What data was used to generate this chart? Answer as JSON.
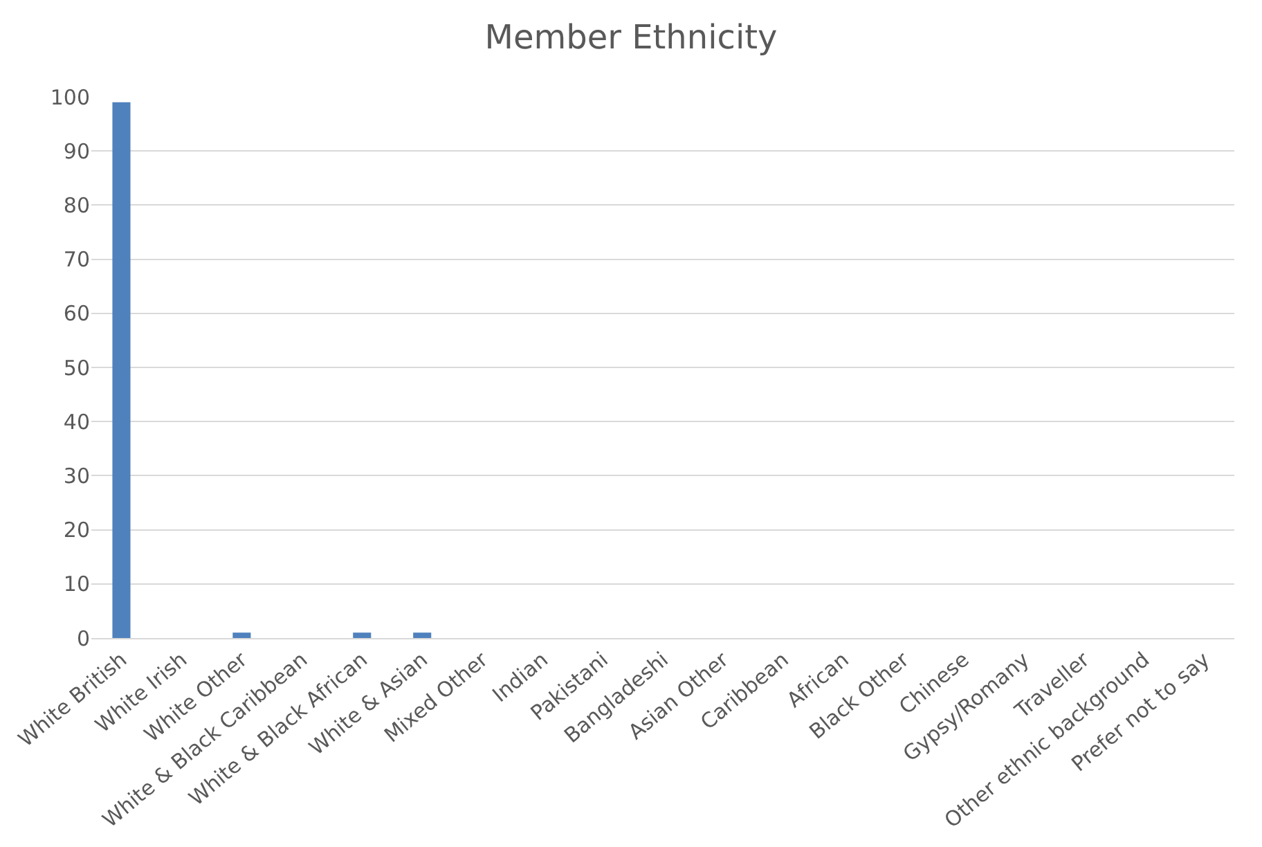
{
  "chart_data": {
    "type": "bar",
    "title": "Member Ethnicity",
    "categories": [
      "White British",
      "White Irish",
      "White Other",
      "White & Black Caribbean",
      "White & Black African",
      "White & Asian",
      "Mixed Other",
      "Indian",
      "Pakistani",
      "Bangladeshi",
      "Asian Other",
      "Caribbean",
      "African",
      "Black Other",
      "Chinese",
      "Gypsy/Romany",
      "Traveller",
      "Other ethnic background",
      "Prefer not to say"
    ],
    "values": [
      99,
      0,
      1,
      0,
      1,
      1,
      0,
      0,
      0,
      0,
      0,
      0,
      0,
      0,
      0,
      0,
      0,
      0,
      0
    ],
    "color": "#4f81bd",
    "ylim": [
      0,
      100
    ],
    "yticks": [
      0,
      10,
      20,
      30,
      40,
      50,
      60,
      70,
      80,
      90,
      100
    ],
    "grid": "y",
    "legend": false
  }
}
